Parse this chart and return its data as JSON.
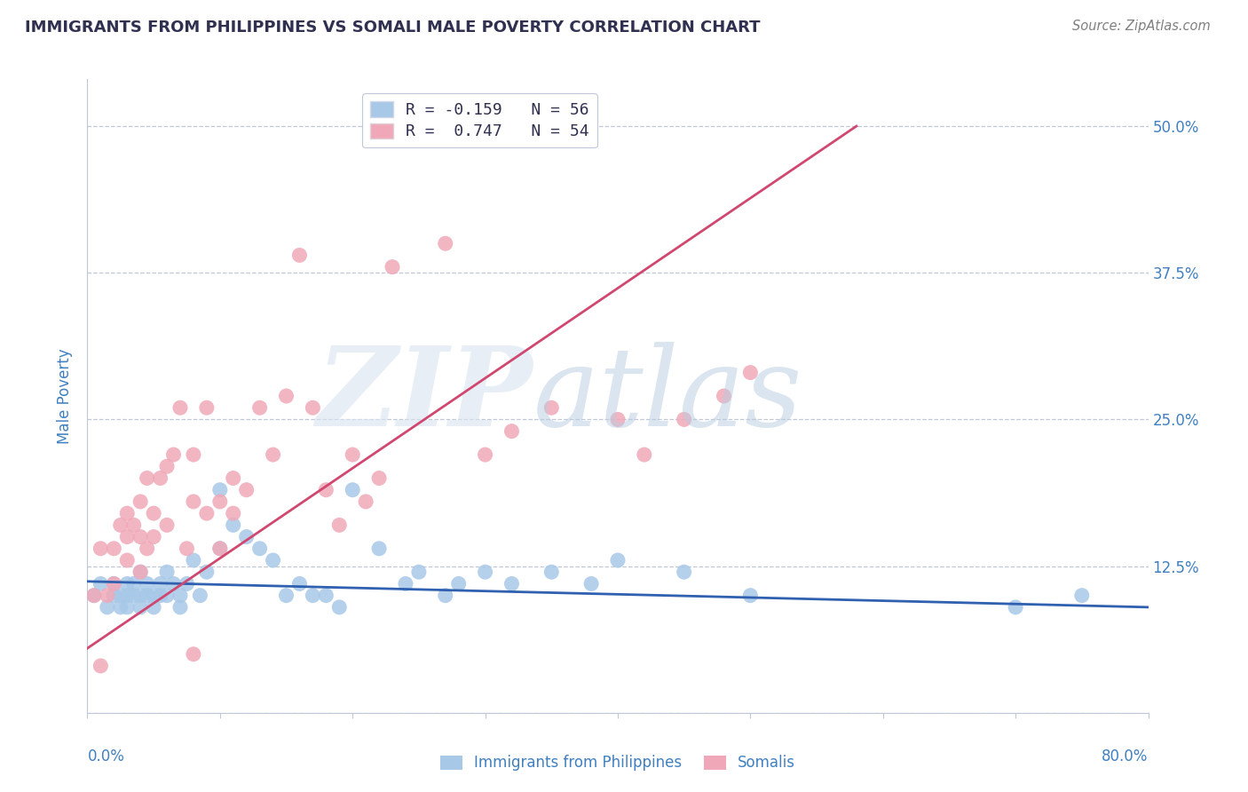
{
  "title": "IMMIGRANTS FROM PHILIPPINES VS SOMALI MALE POVERTY CORRELATION CHART",
  "source": "Source: ZipAtlas.com",
  "ylabel": "Male Poverty",
  "yticks": [
    0.0,
    0.125,
    0.25,
    0.375,
    0.5
  ],
  "ytick_labels": [
    "",
    "12.5%",
    "25.0%",
    "37.5%",
    "50.0%"
  ],
  "xlim": [
    0.0,
    0.8
  ],
  "ylim": [
    0.0,
    0.54
  ],
  "legend_entry1": "R = -0.159   N = 56",
  "legend_entry2": "R =  0.747   N = 54",
  "legend_label1": "Immigrants from Philippines",
  "legend_label2": "Somalis",
  "blue_color": "#a8c8e8",
  "pink_color": "#f0a8b8",
  "blue_line_color": "#3060b0",
  "pink_line_color": "#d04870",
  "title_color": "#303050",
  "axis_color": "#4080c0",
  "grid_color": "#c0c8d8",
  "blue_scatter_x": [
    0.005,
    0.01,
    0.015,
    0.02,
    0.02,
    0.025,
    0.025,
    0.03,
    0.03,
    0.03,
    0.035,
    0.035,
    0.04,
    0.04,
    0.04,
    0.045,
    0.045,
    0.05,
    0.05,
    0.055,
    0.055,
    0.06,
    0.06,
    0.065,
    0.07,
    0.07,
    0.075,
    0.08,
    0.085,
    0.09,
    0.1,
    0.1,
    0.11,
    0.12,
    0.13,
    0.14,
    0.15,
    0.16,
    0.17,
    0.18,
    0.19,
    0.2,
    0.22,
    0.24,
    0.25,
    0.27,
    0.28,
    0.3,
    0.32,
    0.35,
    0.38,
    0.4,
    0.45,
    0.5,
    0.7,
    0.75
  ],
  "blue_scatter_y": [
    0.1,
    0.11,
    0.09,
    0.1,
    0.11,
    0.1,
    0.09,
    0.1,
    0.11,
    0.09,
    0.1,
    0.11,
    0.1,
    0.12,
    0.09,
    0.11,
    0.1,
    0.1,
    0.09,
    0.11,
    0.1,
    0.1,
    0.12,
    0.11,
    0.1,
    0.09,
    0.11,
    0.13,
    0.1,
    0.12,
    0.19,
    0.14,
    0.16,
    0.15,
    0.14,
    0.13,
    0.1,
    0.11,
    0.1,
    0.1,
    0.09,
    0.19,
    0.14,
    0.11,
    0.12,
    0.1,
    0.11,
    0.12,
    0.11,
    0.12,
    0.11,
    0.13,
    0.12,
    0.1,
    0.09,
    0.1
  ],
  "pink_scatter_x": [
    0.005,
    0.01,
    0.015,
    0.02,
    0.02,
    0.025,
    0.03,
    0.03,
    0.03,
    0.035,
    0.04,
    0.04,
    0.04,
    0.045,
    0.045,
    0.05,
    0.05,
    0.055,
    0.06,
    0.06,
    0.065,
    0.07,
    0.075,
    0.08,
    0.08,
    0.09,
    0.09,
    0.1,
    0.1,
    0.11,
    0.11,
    0.12,
    0.13,
    0.14,
    0.15,
    0.16,
    0.17,
    0.18,
    0.19,
    0.2,
    0.21,
    0.22,
    0.23,
    0.27,
    0.3,
    0.32,
    0.35,
    0.4,
    0.42,
    0.45,
    0.48,
    0.5,
    0.08,
    0.01
  ],
  "pink_scatter_y": [
    0.1,
    0.14,
    0.1,
    0.11,
    0.14,
    0.16,
    0.15,
    0.17,
    0.13,
    0.16,
    0.18,
    0.12,
    0.15,
    0.2,
    0.14,
    0.17,
    0.15,
    0.2,
    0.21,
    0.16,
    0.22,
    0.26,
    0.14,
    0.22,
    0.18,
    0.17,
    0.26,
    0.18,
    0.14,
    0.2,
    0.17,
    0.19,
    0.26,
    0.22,
    0.27,
    0.39,
    0.26,
    0.19,
    0.16,
    0.22,
    0.18,
    0.2,
    0.38,
    0.4,
    0.22,
    0.24,
    0.26,
    0.25,
    0.22,
    0.25,
    0.27,
    0.29,
    0.05,
    0.04
  ],
  "blue_line_x": [
    0.0,
    0.8
  ],
  "blue_line_y": [
    0.112,
    0.09
  ],
  "pink_line_x": [
    0.0,
    0.58
  ],
  "pink_line_y": [
    0.055,
    0.5
  ]
}
